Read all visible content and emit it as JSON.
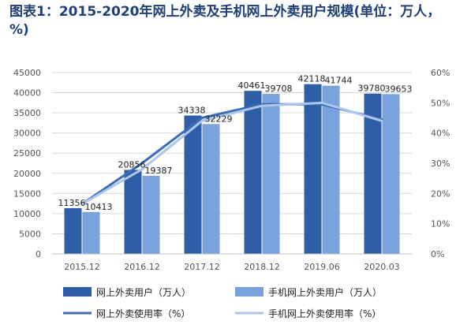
{
  "title": "图表1：2015-2020年网上外卖及手机网上外卖用户规模(单位：万人，%)",
  "chart_data": {
    "type": "bar",
    "categories": [
      "2015.12",
      "2016.12",
      "2017.12",
      "2018.12",
      "2019.06",
      "2020.03"
    ],
    "series": [
      {
        "name": "网上外卖用户（万人）",
        "kind": "bar",
        "axis": "left",
        "color": "#2e5fa6",
        "values": [
          11356,
          20856,
          34338,
          40461,
          42118,
          39780
        ]
      },
      {
        "name": "手机网上外卖用户（万人）",
        "kind": "bar",
        "axis": "left",
        "color": "#7aa2dd",
        "values": [
          10413,
          19387,
          32229,
          39708,
          41744,
          39653
        ]
      },
      {
        "name": "网上外卖使用率（%）",
        "kind": "line",
        "axis": "right",
        "color": "#3d6db6",
        "values": [
          16.5,
          30.0,
          45.0,
          49.5,
          49.5,
          44.5
        ]
      },
      {
        "name": "手机网上外卖使用率（%）",
        "kind": "line",
        "axis": "right",
        "color": "#aec6ea",
        "values": [
          16.5,
          28.0,
          44.0,
          49.0,
          50.0,
          44.0
        ]
      }
    ],
    "bar_labels": [
      [
        "11356",
        "20856",
        "34338",
        "40461",
        "42118",
        "39780"
      ],
      [
        "10413",
        "19387",
        "32229",
        "39708",
        "41744",
        "39653"
      ]
    ],
    "y_left": {
      "min": 0,
      "max": 45000,
      "step": 5000,
      "ticks": [
        "0",
        "5000",
        "10000",
        "15000",
        "20000",
        "25000",
        "30000",
        "35000",
        "40000",
        "45000"
      ]
    },
    "y_right": {
      "min": 0,
      "max": 60,
      "step": 10,
      "ticks": [
        "0%",
        "10%",
        "20%",
        "30%",
        "40%",
        "50%",
        "60%"
      ]
    },
    "grid": true,
    "legend_position": "bottom"
  }
}
